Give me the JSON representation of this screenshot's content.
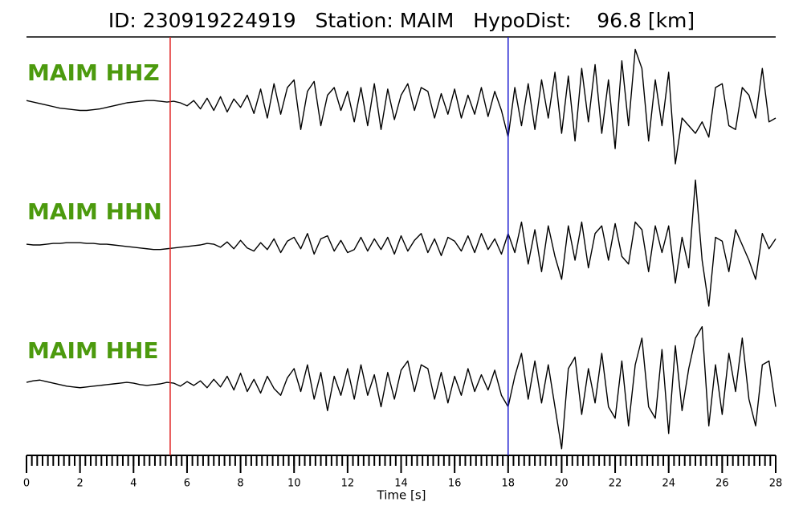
{
  "chart_data": {
    "type": "line",
    "title": "ID: 230919224919   Station: MAIM   HypoDist:    96.8 [km]",
    "xlabel": "Time [s]",
    "xlim": [
      0,
      28
    ],
    "xticks": [
      0,
      2,
      4,
      6,
      8,
      10,
      12,
      14,
      16,
      18,
      20,
      22,
      24,
      26,
      28
    ],
    "minor_xticks": [
      0,
      0.2,
      0.4,
      0.6,
      0.8,
      1,
      1.2,
      1.4,
      1.6,
      1.8,
      2,
      2.2,
      2.4,
      2.6,
      2.8,
      3,
      3.2,
      3.4,
      3.6,
      3.8,
      4,
      4.2,
      4.4,
      4.6,
      4.8,
      5,
      5.2,
      5.4,
      5.6,
      5.8,
      6,
      6.2,
      6.4,
      6.6,
      6.8,
      7,
      7.2,
      7.4,
      7.6,
      7.8,
      8,
      8.2,
      8.4,
      8.6,
      8.8,
      9,
      9.2,
      9.4,
      9.6,
      9.8,
      10,
      10.2,
      10.4,
      10.6,
      10.8,
      11,
      11.2,
      11.4,
      11.6,
      11.8,
      12,
      12.2,
      12.4,
      12.6,
      12.8,
      13,
      13.2,
      13.4,
      13.6,
      13.8,
      14,
      14.2,
      14.4,
      14.6,
      14.8,
      15,
      15.2,
      15.4,
      15.6,
      15.8,
      16,
      16.2,
      16.4,
      16.6,
      16.8,
      17,
      17.2,
      17.4,
      17.6,
      17.8,
      18,
      18.2,
      18.4,
      18.6,
      18.8,
      19,
      19.2,
      19.4,
      19.6,
      19.8,
      20,
      20.2,
      20.4,
      20.6,
      20.8,
      21,
      21.2,
      21.4,
      21.6,
      21.8,
      22,
      22.2,
      22.4,
      22.6,
      22.8,
      23,
      23.2,
      23.4,
      23.6,
      23.8,
      24,
      24.2,
      24.4,
      24.6,
      24.8,
      25,
      25.2,
      25.4,
      25.6,
      25.8,
      26,
      26.2,
      26.4,
      26.6,
      26.8,
      27,
      27.2,
      27.4,
      27.6,
      27.8,
      28
    ],
    "ylim": [
      -90,
      90
    ],
    "label_color": "#4c9a0e",
    "markers": [
      {
        "x": 5.37,
        "color": "#e02020"
      },
      {
        "x": 18.0,
        "color": "#1f1fd0"
      }
    ],
    "x": [
      0,
      0.25,
      0.5,
      0.75,
      1,
      1.25,
      1.5,
      1.75,
      2,
      2.25,
      2.5,
      2.75,
      3,
      3.25,
      3.5,
      3.75,
      4,
      4.25,
      4.5,
      4.75,
      5,
      5.25,
      5.5,
      5.75,
      6,
      6.25,
      6.5,
      6.75,
      7,
      7.25,
      7.5,
      7.75,
      8,
      8.25,
      8.5,
      8.75,
      9,
      9.25,
      9.5,
      9.75,
      10,
      10.25,
      10.5,
      10.75,
      11,
      11.25,
      11.5,
      11.75,
      12,
      12.25,
      12.5,
      12.75,
      13,
      13.25,
      13.5,
      13.75,
      14,
      14.25,
      14.5,
      14.75,
      15,
      15.25,
      15.5,
      15.75,
      16,
      16.25,
      16.5,
      16.75,
      17,
      17.25,
      17.5,
      17.75,
      18,
      18.25,
      18.5,
      18.75,
      19,
      19.25,
      19.5,
      19.75,
      20,
      20.25,
      20.5,
      20.75,
      21,
      21.25,
      21.5,
      21.75,
      22,
      22.25,
      22.5,
      22.75,
      23,
      23.25,
      23.5,
      23.75,
      24,
      24.25,
      24.5,
      24.75,
      25,
      25.25,
      25.5,
      25.75,
      26,
      26.25,
      26.5,
      26.75,
      27,
      27.25,
      27.5,
      27.75,
      28
    ],
    "series": [
      {
        "name": "MAIM HHZ",
        "color": "#000000",
        "values": [
          3,
          1,
          -1,
          -3,
          -5,
          -7,
          -8,
          -9,
          -10,
          -10,
          -9,
          -8,
          -6,
          -4,
          -2,
          0,
          1,
          2,
          3,
          3,
          2,
          1,
          2,
          0,
          -4,
          3,
          -8,
          6,
          -10,
          8,
          -12,
          5,
          -6,
          10,
          -14,
          18,
          -20,
          25,
          -15,
          20,
          30,
          -35,
          15,
          28,
          -30,
          10,
          20,
          -10,
          15,
          -25,
          20,
          -30,
          25,
          -35,
          18,
          -22,
          10,
          25,
          -10,
          20,
          15,
          -20,
          12,
          -15,
          18,
          -20,
          10,
          -15,
          20,
          -18,
          15,
          -10,
          -45,
          20,
          -30,
          25,
          -35,
          30,
          -20,
          40,
          -40,
          35,
          -50,
          45,
          -25,
          50,
          -40,
          30,
          -60,
          55,
          -30,
          70,
          45,
          -50,
          30,
          -30,
          40,
          -80,
          -20,
          -30,
          -40,
          -25,
          -45,
          20,
          25,
          -30,
          -35,
          20,
          10,
          -20,
          45,
          -25,
          -20
        ]
      },
      {
        "name": "MAIM HHN",
        "color": "#000000",
        "values": [
          1,
          0,
          0,
          1,
          2,
          2,
          3,
          3,
          3,
          2,
          2,
          1,
          1,
          0,
          -1,
          -2,
          -3,
          -4,
          -5,
          -6,
          -6,
          -5,
          -4,
          -3,
          -2,
          -1,
          0,
          2,
          1,
          -3,
          4,
          -5,
          6,
          -4,
          -8,
          3,
          -6,
          8,
          -10,
          5,
          10,
          -5,
          15,
          -12,
          8,
          12,
          -8,
          6,
          -10,
          -6,
          10,
          -8,
          8,
          -6,
          10,
          -12,
          12,
          -8,
          6,
          15,
          -10,
          8,
          -14,
          10,
          5,
          -8,
          12,
          -10,
          15,
          -6,
          8,
          -12,
          15,
          -10,
          30,
          -25,
          20,
          -35,
          25,
          -15,
          -45,
          25,
          -20,
          30,
          -30,
          15,
          25,
          -20,
          28,
          -15,
          -25,
          30,
          20,
          -35,
          25,
          -10,
          25,
          -50,
          10,
          -30,
          85,
          -20,
          -80,
          10,
          5,
          -35,
          20,
          0,
          -20,
          -45,
          15,
          -5,
          8
        ]
      },
      {
        "name": "MAIM HHE",
        "color": "#000000",
        "values": [
          2,
          4,
          5,
          3,
          1,
          -1,
          -3,
          -4,
          -5,
          -4,
          -3,
          -2,
          -1,
          0,
          1,
          2,
          1,
          -1,
          -2,
          -1,
          0,
          2,
          1,
          -3,
          3,
          -2,
          4,
          -5,
          6,
          -4,
          10,
          -8,
          14,
          -10,
          6,
          -12,
          10,
          -6,
          -15,
          8,
          20,
          -10,
          25,
          -20,
          15,
          -35,
          10,
          -15,
          20,
          -20,
          25,
          -15,
          12,
          -30,
          15,
          -20,
          18,
          30,
          -10,
          25,
          20,
          -20,
          15,
          -25,
          10,
          -15,
          20,
          -10,
          12,
          -8,
          18,
          -15,
          -30,
          10,
          40,
          -20,
          30,
          -25,
          25,
          -30,
          -85,
          20,
          35,
          -40,
          20,
          -25,
          40,
          -30,
          -45,
          30,
          -55,
          25,
          60,
          -30,
          -45,
          45,
          -65,
          50,
          -35,
          20,
          60,
          75,
          -55,
          25,
          -40,
          40,
          -10,
          60,
          -20,
          -55,
          25,
          30,
          -30
        ]
      }
    ]
  }
}
